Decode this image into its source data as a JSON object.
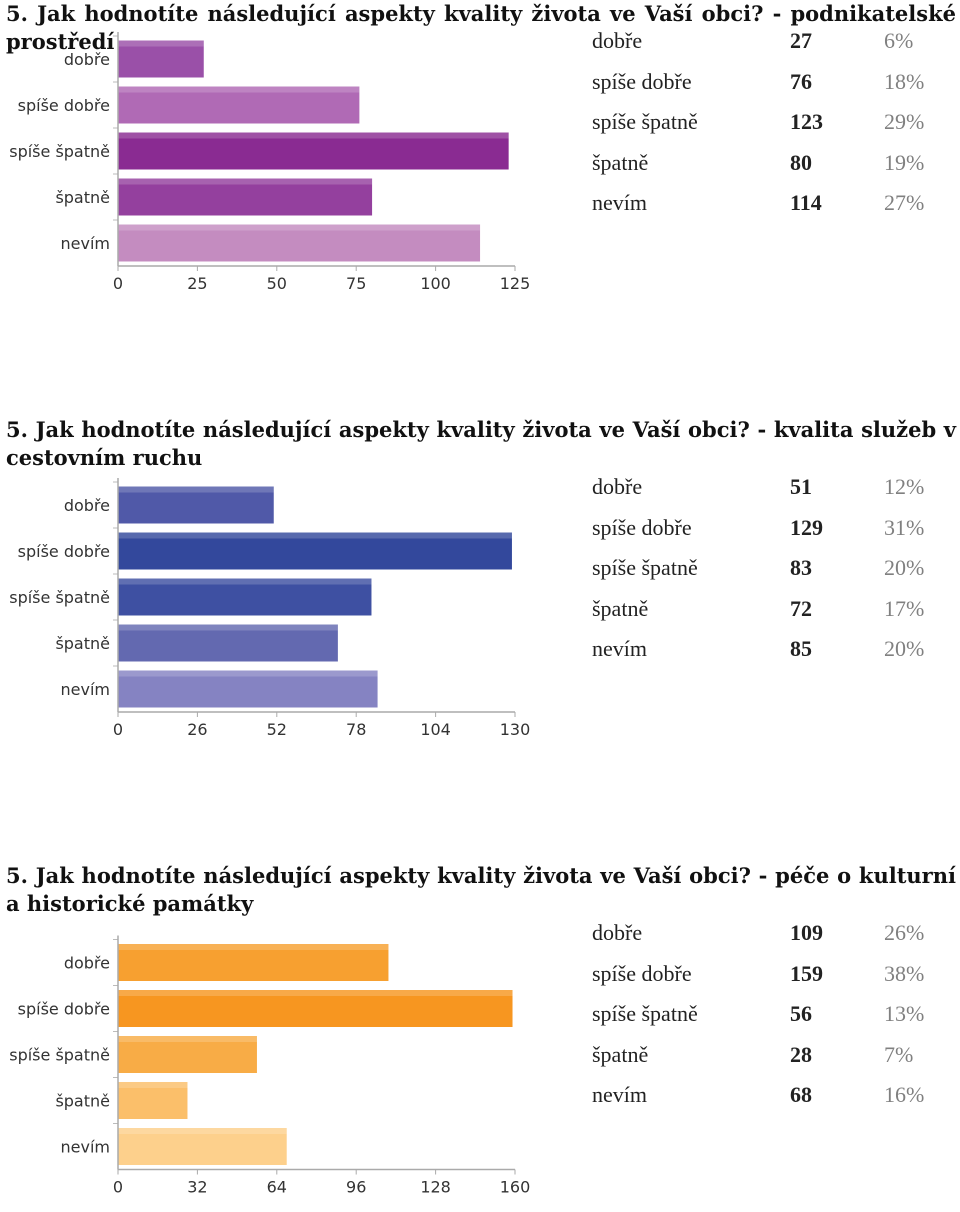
{
  "sections": [
    {
      "title": "5. Jak hodnotíte následující aspekty kvality života ve Vaší obci? - podnikatelské prostředí",
      "legend": [
        {
          "label": "dobře",
          "count": "27",
          "percent": "6%"
        },
        {
          "label": "spíše dobře",
          "count": "76",
          "percent": "18%"
        },
        {
          "label": "spíše špatně",
          "count": "123",
          "percent": "29%"
        },
        {
          "label": "špatně",
          "count": "80",
          "percent": "19%"
        },
        {
          "label": "nevím",
          "count": "114",
          "percent": "27%"
        }
      ]
    },
    {
      "title": "5. Jak hodnotíte následující aspekty kvality života ve Vaší obci? - kvalita služeb v cestovním ruchu",
      "legend": [
        {
          "label": "dobře",
          "count": "51",
          "percent": "12%"
        },
        {
          "label": "spíše dobře",
          "count": "129",
          "percent": "31%"
        },
        {
          "label": "spíše špatně",
          "count": "83",
          "percent": "20%"
        },
        {
          "label": "špatně",
          "count": "72",
          "percent": "17%"
        },
        {
          "label": "nevím",
          "count": "85",
          "percent": "20%"
        }
      ]
    },
    {
      "title": "5. Jak hodnotíte následující aspekty kvality života ve Vaší obci? - péče o kulturní a historické památky",
      "legend": [
        {
          "label": "dobře",
          "count": "109",
          "percent": "26%"
        },
        {
          "label": "spíše dobře",
          "count": "159",
          "percent": "38%"
        },
        {
          "label": "spíše špatně",
          "count": "56",
          "percent": "13%"
        },
        {
          "label": "špatně",
          "count": "28",
          "percent": "7%"
        },
        {
          "label": "nevím",
          "count": "68",
          "percent": "16%"
        }
      ]
    }
  ],
  "chart_data": [
    {
      "type": "bar",
      "orientation": "horizontal",
      "categories": [
        "dobře",
        "spíše dobře",
        "spíše špatně",
        "špatně",
        "nevím"
      ],
      "values": [
        27,
        76,
        123,
        80,
        114
      ],
      "xlim": [
        0,
        125
      ],
      "xticks": [
        "0",
        "25",
        "50",
        "75",
        "100",
        "125"
      ],
      "colors": [
        "#9a50a8",
        "#b06ab5",
        "#8a2b92",
        "#94409e",
        "#c48cc0"
      ],
      "grid": false,
      "legend": "none"
    },
    {
      "type": "bar",
      "orientation": "horizontal",
      "categories": [
        "dobře",
        "spíše dobře",
        "spíše špatně",
        "špatně",
        "nevím"
      ],
      "values": [
        51,
        129,
        83,
        72,
        85
      ],
      "xlim": [
        0,
        130
      ],
      "xticks": [
        "0",
        "26",
        "52",
        "78",
        "104",
        "130"
      ],
      "colors": [
        "#5059a8",
        "#33489c",
        "#3e50a2",
        "#6369b0",
        "#8583c2"
      ],
      "grid": false,
      "legend": "none"
    },
    {
      "type": "bar",
      "orientation": "horizontal",
      "categories": [
        "dobře",
        "spíše dobře",
        "spíše špatně",
        "špatně",
        "nevím"
      ],
      "values": [
        109,
        159,
        56,
        28,
        68
      ],
      "xlim": [
        0,
        160
      ],
      "xticks": [
        "0",
        "32",
        "64",
        "96",
        "128",
        "160"
      ],
      "colors": [
        "#f7a030",
        "#f79620",
        "#f8ac46",
        "#fbbf6a",
        "#fdd08c"
      ],
      "grid": false,
      "legend": "none"
    }
  ]
}
